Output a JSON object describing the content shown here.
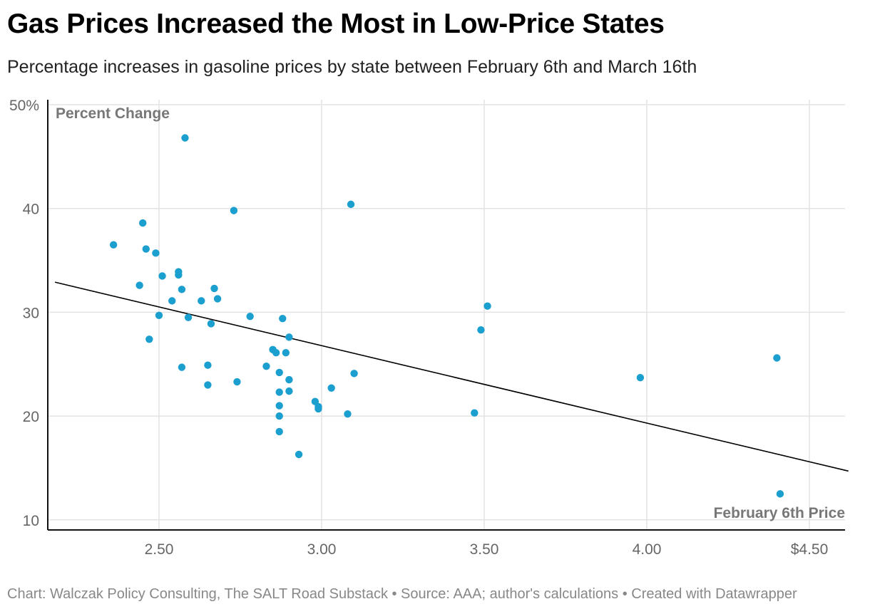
{
  "header": {
    "title": "Gas Prices Increased the Most in Low-Price States",
    "subtitle": "Percentage increases in gasoline prices by state between February 6th and March 16th"
  },
  "footer": {
    "text": "Chart: Walczak Policy Consulting, The SALT Road Substack • Source: AAA; author's calculations • Created with Datawrapper"
  },
  "chart_data": {
    "type": "scatter",
    "title": "Gas Prices Increased the Most in Low-Price States",
    "subtitle": "Percentage increases in gasoline prices by state between February 6th and March 16th",
    "xlabel": "February 6th Price",
    "ylabel": "Percent Change",
    "xlim": [
      2.18,
      4.62
    ],
    "ylim": [
      9,
      50
    ],
    "x_ticks": [
      {
        "value": 2.5,
        "label": "2.50"
      },
      {
        "value": 3.0,
        "label": "3.00"
      },
      {
        "value": 3.5,
        "label": "3.50"
      },
      {
        "value": 4.0,
        "label": "4.00"
      },
      {
        "value": 4.5,
        "label": "$4.50"
      }
    ],
    "y_ticks": [
      {
        "value": 10,
        "label": "10"
      },
      {
        "value": 20,
        "label": "20"
      },
      {
        "value": 30,
        "label": "30"
      },
      {
        "value": 40,
        "label": "40"
      },
      {
        "value": 50,
        "label": "50%"
      }
    ],
    "grid": true,
    "point_color": "#1a9fcf",
    "trendline": {
      "color": "#000000",
      "points": [
        [
          2.18,
          32.9
        ],
        [
          4.62,
          14.7
        ]
      ]
    },
    "points": [
      {
        "x": 2.58,
        "y": 46.8
      },
      {
        "x": 2.73,
        "y": 39.8
      },
      {
        "x": 3.09,
        "y": 40.4
      },
      {
        "x": 2.45,
        "y": 38.6
      },
      {
        "x": 2.36,
        "y": 36.5
      },
      {
        "x": 2.46,
        "y": 36.1
      },
      {
        "x": 2.49,
        "y": 35.7
      },
      {
        "x": 2.56,
        "y": 33.9
      },
      {
        "x": 2.56,
        "y": 33.6
      },
      {
        "x": 2.51,
        "y": 33.5
      },
      {
        "x": 2.44,
        "y": 32.6
      },
      {
        "x": 2.57,
        "y": 32.2
      },
      {
        "x": 2.67,
        "y": 32.3
      },
      {
        "x": 2.68,
        "y": 31.3
      },
      {
        "x": 2.54,
        "y": 31.1
      },
      {
        "x": 2.63,
        "y": 31.1
      },
      {
        "x": 2.5,
        "y": 29.7
      },
      {
        "x": 2.59,
        "y": 29.5
      },
      {
        "x": 2.78,
        "y": 29.6
      },
      {
        "x": 2.88,
        "y": 29.4
      },
      {
        "x": 2.66,
        "y": 28.9
      },
      {
        "x": 2.9,
        "y": 27.6
      },
      {
        "x": 2.47,
        "y": 27.4
      },
      {
        "x": 2.85,
        "y": 26.4
      },
      {
        "x": 2.86,
        "y": 26.1
      },
      {
        "x": 2.89,
        "y": 26.1
      },
      {
        "x": 2.65,
        "y": 24.9
      },
      {
        "x": 2.83,
        "y": 24.8
      },
      {
        "x": 2.57,
        "y": 24.7
      },
      {
        "x": 2.87,
        "y": 24.2
      },
      {
        "x": 3.1,
        "y": 24.1
      },
      {
        "x": 2.9,
        "y": 23.5
      },
      {
        "x": 2.74,
        "y": 23.3
      },
      {
        "x": 2.65,
        "y": 23.0
      },
      {
        "x": 3.03,
        "y": 22.7
      },
      {
        "x": 2.9,
        "y": 22.4
      },
      {
        "x": 2.87,
        "y": 22.3
      },
      {
        "x": 2.98,
        "y": 21.4
      },
      {
        "x": 2.87,
        "y": 21.0
      },
      {
        "x": 2.99,
        "y": 20.9
      },
      {
        "x": 2.99,
        "y": 20.7
      },
      {
        "x": 3.08,
        "y": 20.2
      },
      {
        "x": 2.87,
        "y": 20.0
      },
      {
        "x": 2.87,
        "y": 18.5
      },
      {
        "x": 2.93,
        "y": 16.3
      },
      {
        "x": 3.47,
        "y": 20.3
      },
      {
        "x": 3.49,
        "y": 28.3
      },
      {
        "x": 3.51,
        "y": 30.6
      },
      {
        "x": 3.98,
        "y": 23.7
      },
      {
        "x": 4.4,
        "y": 25.6
      },
      {
        "x": 4.41,
        "y": 12.5
      }
    ],
    "annotations": [
      {
        "text": "Percent Change",
        "position": "top-left"
      },
      {
        "text": "February 6th Price",
        "position": "bottom-right"
      }
    ]
  }
}
